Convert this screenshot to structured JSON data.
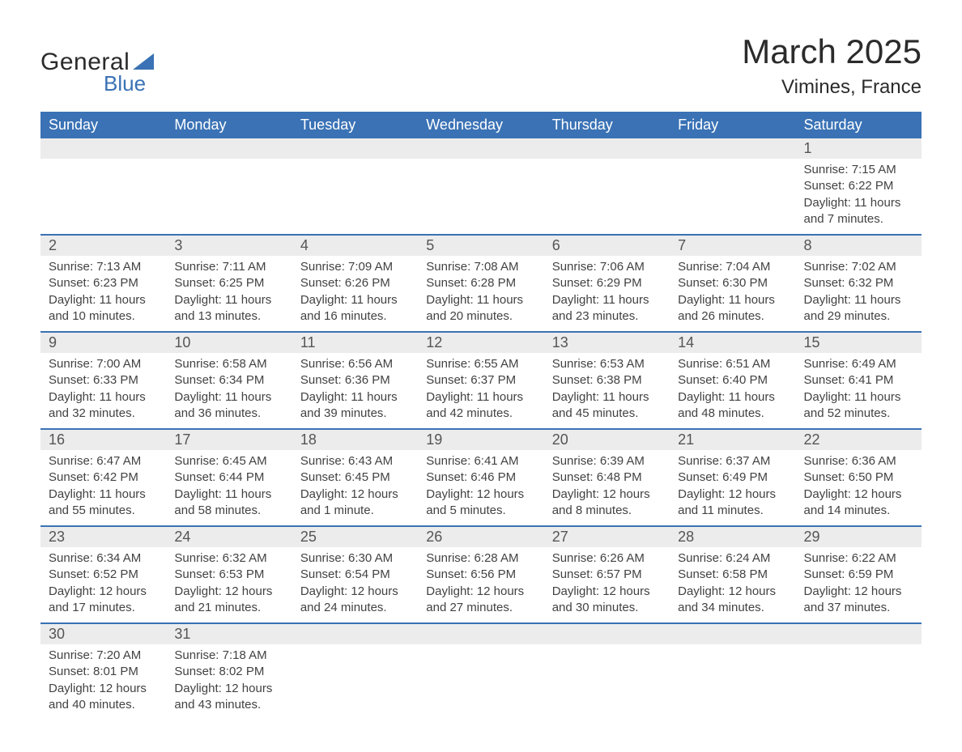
{
  "logo": {
    "text1": "General",
    "text2": "Blue",
    "triangle_color": "#3a72b5"
  },
  "title": "March 2025",
  "location": "Vimines, France",
  "colors": {
    "header_bg": "#3a72b5",
    "header_text": "#ffffff",
    "daynum_bg": "#ececec",
    "row_border": "#3a72b5",
    "body_text": "#424242"
  },
  "typography": {
    "title_fontsize": 42,
    "location_fontsize": 24,
    "dayheader_fontsize": 18,
    "daynum_fontsize": 18,
    "detail_fontsize": 15
  },
  "day_headers": [
    "Sunday",
    "Monday",
    "Tuesday",
    "Wednesday",
    "Thursday",
    "Friday",
    "Saturday"
  ],
  "weeks": [
    [
      null,
      null,
      null,
      null,
      null,
      null,
      {
        "n": "1",
        "sunrise": "Sunrise: 7:15 AM",
        "sunset": "Sunset: 6:22 PM",
        "daylight": "Daylight: 11 hours and 7 minutes."
      }
    ],
    [
      {
        "n": "2",
        "sunrise": "Sunrise: 7:13 AM",
        "sunset": "Sunset: 6:23 PM",
        "daylight": "Daylight: 11 hours and 10 minutes."
      },
      {
        "n": "3",
        "sunrise": "Sunrise: 7:11 AM",
        "sunset": "Sunset: 6:25 PM",
        "daylight": "Daylight: 11 hours and 13 minutes."
      },
      {
        "n": "4",
        "sunrise": "Sunrise: 7:09 AM",
        "sunset": "Sunset: 6:26 PM",
        "daylight": "Daylight: 11 hours and 16 minutes."
      },
      {
        "n": "5",
        "sunrise": "Sunrise: 7:08 AM",
        "sunset": "Sunset: 6:28 PM",
        "daylight": "Daylight: 11 hours and 20 minutes."
      },
      {
        "n": "6",
        "sunrise": "Sunrise: 7:06 AM",
        "sunset": "Sunset: 6:29 PM",
        "daylight": "Daylight: 11 hours and 23 minutes."
      },
      {
        "n": "7",
        "sunrise": "Sunrise: 7:04 AM",
        "sunset": "Sunset: 6:30 PM",
        "daylight": "Daylight: 11 hours and 26 minutes."
      },
      {
        "n": "8",
        "sunrise": "Sunrise: 7:02 AM",
        "sunset": "Sunset: 6:32 PM",
        "daylight": "Daylight: 11 hours and 29 minutes."
      }
    ],
    [
      {
        "n": "9",
        "sunrise": "Sunrise: 7:00 AM",
        "sunset": "Sunset: 6:33 PM",
        "daylight": "Daylight: 11 hours and 32 minutes."
      },
      {
        "n": "10",
        "sunrise": "Sunrise: 6:58 AM",
        "sunset": "Sunset: 6:34 PM",
        "daylight": "Daylight: 11 hours and 36 minutes."
      },
      {
        "n": "11",
        "sunrise": "Sunrise: 6:56 AM",
        "sunset": "Sunset: 6:36 PM",
        "daylight": "Daylight: 11 hours and 39 minutes."
      },
      {
        "n": "12",
        "sunrise": "Sunrise: 6:55 AM",
        "sunset": "Sunset: 6:37 PM",
        "daylight": "Daylight: 11 hours and 42 minutes."
      },
      {
        "n": "13",
        "sunrise": "Sunrise: 6:53 AM",
        "sunset": "Sunset: 6:38 PM",
        "daylight": "Daylight: 11 hours and 45 minutes."
      },
      {
        "n": "14",
        "sunrise": "Sunrise: 6:51 AM",
        "sunset": "Sunset: 6:40 PM",
        "daylight": "Daylight: 11 hours and 48 minutes."
      },
      {
        "n": "15",
        "sunrise": "Sunrise: 6:49 AM",
        "sunset": "Sunset: 6:41 PM",
        "daylight": "Daylight: 11 hours and 52 minutes."
      }
    ],
    [
      {
        "n": "16",
        "sunrise": "Sunrise: 6:47 AM",
        "sunset": "Sunset: 6:42 PM",
        "daylight": "Daylight: 11 hours and 55 minutes."
      },
      {
        "n": "17",
        "sunrise": "Sunrise: 6:45 AM",
        "sunset": "Sunset: 6:44 PM",
        "daylight": "Daylight: 11 hours and 58 minutes."
      },
      {
        "n": "18",
        "sunrise": "Sunrise: 6:43 AM",
        "sunset": "Sunset: 6:45 PM",
        "daylight": "Daylight: 12 hours and 1 minute."
      },
      {
        "n": "19",
        "sunrise": "Sunrise: 6:41 AM",
        "sunset": "Sunset: 6:46 PM",
        "daylight": "Daylight: 12 hours and 5 minutes."
      },
      {
        "n": "20",
        "sunrise": "Sunrise: 6:39 AM",
        "sunset": "Sunset: 6:48 PM",
        "daylight": "Daylight: 12 hours and 8 minutes."
      },
      {
        "n": "21",
        "sunrise": "Sunrise: 6:37 AM",
        "sunset": "Sunset: 6:49 PM",
        "daylight": "Daylight: 12 hours and 11 minutes."
      },
      {
        "n": "22",
        "sunrise": "Sunrise: 6:36 AM",
        "sunset": "Sunset: 6:50 PM",
        "daylight": "Daylight: 12 hours and 14 minutes."
      }
    ],
    [
      {
        "n": "23",
        "sunrise": "Sunrise: 6:34 AM",
        "sunset": "Sunset: 6:52 PM",
        "daylight": "Daylight: 12 hours and 17 minutes."
      },
      {
        "n": "24",
        "sunrise": "Sunrise: 6:32 AM",
        "sunset": "Sunset: 6:53 PM",
        "daylight": "Daylight: 12 hours and 21 minutes."
      },
      {
        "n": "25",
        "sunrise": "Sunrise: 6:30 AM",
        "sunset": "Sunset: 6:54 PM",
        "daylight": "Daylight: 12 hours and 24 minutes."
      },
      {
        "n": "26",
        "sunrise": "Sunrise: 6:28 AM",
        "sunset": "Sunset: 6:56 PM",
        "daylight": "Daylight: 12 hours and 27 minutes."
      },
      {
        "n": "27",
        "sunrise": "Sunrise: 6:26 AM",
        "sunset": "Sunset: 6:57 PM",
        "daylight": "Daylight: 12 hours and 30 minutes."
      },
      {
        "n": "28",
        "sunrise": "Sunrise: 6:24 AM",
        "sunset": "Sunset: 6:58 PM",
        "daylight": "Daylight: 12 hours and 34 minutes."
      },
      {
        "n": "29",
        "sunrise": "Sunrise: 6:22 AM",
        "sunset": "Sunset: 6:59 PM",
        "daylight": "Daylight: 12 hours and 37 minutes."
      }
    ],
    [
      {
        "n": "30",
        "sunrise": "Sunrise: 7:20 AM",
        "sunset": "Sunset: 8:01 PM",
        "daylight": "Daylight: 12 hours and 40 minutes."
      },
      {
        "n": "31",
        "sunrise": "Sunrise: 7:18 AM",
        "sunset": "Sunset: 8:02 PM",
        "daylight": "Daylight: 12 hours and 43 minutes."
      },
      null,
      null,
      null,
      null,
      null
    ]
  ]
}
